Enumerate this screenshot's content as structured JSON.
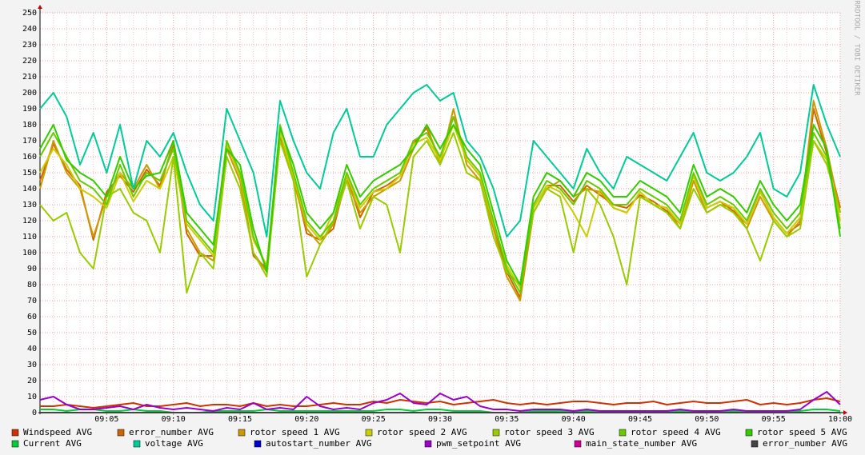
{
  "chart_data": {
    "type": "line",
    "watermark": "RRDTOOL / TOBI OETIKER",
    "categories": [
      null,
      null,
      null,
      null,
      null,
      "09:05",
      null,
      null,
      null,
      null,
      "09:10",
      null,
      null,
      null,
      null,
      "09:15",
      null,
      null,
      null,
      null,
      "09:20",
      null,
      null,
      null,
      null,
      "09:25",
      null,
      null,
      null,
      null,
      "09:30",
      null,
      null,
      null,
      null,
      "09:35",
      null,
      null,
      null,
      null,
      "09:40",
      null,
      null,
      null,
      null,
      "09:45",
      null,
      null,
      null,
      null,
      "09:50",
      null,
      null,
      null,
      null,
      "09:55",
      null,
      null,
      null,
      null,
      "10:00"
    ],
    "ylim": [
      0,
      250
    ],
    "yticks": [
      0,
      10,
      20,
      30,
      40,
      50,
      60,
      70,
      80,
      90,
      100,
      110,
      120,
      130,
      140,
      150,
      160,
      170,
      180,
      190,
      200,
      210,
      220,
      230,
      240,
      250
    ],
    "grid": true,
    "series": [
      {
        "name": "Windspeed AVG",
        "color": "#cc3300",
        "values": [
          4,
          4,
          5,
          4,
          3,
          4,
          5,
          6,
          4,
          4,
          5,
          6,
          4,
          5,
          5,
          4,
          6,
          4,
          5,
          4,
          4,
          5,
          6,
          5,
          5,
          7,
          6,
          8,
          7,
          6,
          7,
          5,
          6,
          7,
          8,
          6,
          5,
          6,
          5,
          6,
          7,
          7,
          6,
          5,
          6,
          6,
          7,
          5,
          6,
          7,
          6,
          6,
          7,
          8,
          5,
          6,
          5,
          6,
          8,
          9,
          7
        ]
      },
      {
        "name": "error_number AVG",
        "color": "#cc6600",
        "values": [
          145,
          168,
          152,
          142,
          108,
          138,
          148,
          138,
          152,
          142,
          168,
          112,
          98,
          98,
          168,
          148,
          98,
          90,
          172,
          148,
          112,
          108,
          115,
          148,
          122,
          138,
          142,
          148,
          168,
          178,
          158,
          185,
          158,
          148,
          118,
          88,
          72,
          128,
          142,
          142,
          132,
          142,
          136,
          130,
          128,
          136,
          132,
          126,
          118,
          148,
          128,
          132,
          126,
          118,
          138,
          122,
          112,
          118,
          190,
          162,
          128
        ]
      },
      {
        "name": "rotor speed 1 AVG",
        "color": "#cc9900",
        "values": [
          140,
          170,
          150,
          140,
          110,
          135,
          150,
          140,
          155,
          140,
          170,
          115,
          100,
          95,
          165,
          145,
          100,
          88,
          175,
          145,
          115,
          105,
          118,
          145,
          125,
          135,
          140,
          145,
          165,
          180,
          155,
          190,
          155,
          145,
          115,
          85,
          70,
          125,
          140,
          145,
          135,
          140,
          138,
          128,
          125,
          138,
          130,
          128,
          115,
          145,
          125,
          130,
          128,
          115,
          135,
          120,
          110,
          120,
          195,
          165,
          125
        ]
      },
      {
        "name": "rotor speed 2 AVG",
        "color": "#cccc00",
        "values": [
          150,
          165,
          155,
          140,
          135,
          128,
          150,
          132,
          145,
          140,
          160,
          118,
          108,
          98,
          168,
          148,
          108,
          92,
          175,
          148,
          118,
          108,
          125,
          148,
          128,
          138,
          140,
          148,
          168,
          172,
          158,
          180,
          158,
          148,
          118,
          92,
          78,
          128,
          142,
          138,
          125,
          110,
          140,
          128,
          125,
          138,
          130,
          128,
          118,
          148,
          128,
          132,
          128,
          118,
          138,
          122,
          112,
          122,
          170,
          158,
          120
        ]
      },
      {
        "name": "rotor speed 3 AVG",
        "color": "#99cc00",
        "values": [
          130,
          120,
          125,
          100,
          90,
          135,
          140,
          125,
          120,
          100,
          160,
          75,
          100,
          90,
          160,
          140,
          100,
          85,
          170,
          145,
          85,
          105,
          120,
          145,
          115,
          135,
          130,
          100,
          160,
          170,
          155,
          175,
          150,
          145,
          110,
          88,
          80,
          125,
          140,
          135,
          100,
          140,
          130,
          110,
          80,
          135,
          130,
          125,
          115,
          140,
          125,
          130,
          125,
          115,
          95,
          120,
          110,
          115,
          170,
          155,
          125
        ]
      },
      {
        "name": "rotor speed 4 AVG",
        "color": "#66cc00",
        "values": [
          160,
          175,
          160,
          145,
          140,
          130,
          155,
          135,
          150,
          145,
          165,
          120,
          110,
          100,
          170,
          150,
          110,
          90,
          180,
          150,
          120,
          110,
          120,
          150,
          130,
          140,
          145,
          150,
          170,
          175,
          160,
          185,
          160,
          150,
          120,
          90,
          75,
          130,
          145,
          140,
          130,
          145,
          140,
          130,
          130,
          140,
          135,
          130,
          120,
          150,
          130,
          135,
          130,
          120,
          140,
          125,
          115,
          125,
          175,
          160,
          115
        ]
      },
      {
        "name": "rotor speed 5 AVG",
        "color": "#33cc00",
        "values": [
          165,
          180,
          158,
          150,
          145,
          135,
          160,
          140,
          148,
          150,
          170,
          125,
          115,
          105,
          165,
          155,
          115,
          88,
          178,
          155,
          125,
          115,
          125,
          155,
          135,
          145,
          150,
          155,
          165,
          180,
          165,
          180,
          165,
          155,
          125,
          95,
          80,
          135,
          150,
          145,
          135,
          150,
          145,
          135,
          135,
          145,
          140,
          135,
          125,
          155,
          135,
          140,
          135,
          125,
          145,
          130,
          120,
          130,
          180,
          165,
          110
        ]
      },
      {
        "name": "Current AVG",
        "color": "#00cc33",
        "values": [
          2,
          2,
          1,
          2,
          2,
          1,
          1,
          2,
          1,
          1,
          0,
          0,
          0,
          1,
          1,
          1,
          1,
          2,
          1,
          1,
          1,
          1,
          1,
          1,
          1,
          1,
          2,
          2,
          1,
          2,
          2,
          1,
          1,
          1,
          0,
          0,
          0,
          1,
          1,
          1,
          1,
          1,
          1,
          1,
          1,
          1,
          1,
          1,
          1,
          1,
          1,
          1,
          1,
          1,
          1,
          1,
          1,
          1,
          2,
          2,
          1
        ]
      },
      {
        "name": "voltage AVG",
        "color": "#00cc99",
        "values": [
          190,
          200,
          185,
          155,
          175,
          150,
          180,
          140,
          170,
          160,
          175,
          150,
          130,
          120,
          190,
          170,
          150,
          110,
          195,
          170,
          150,
          140,
          175,
          190,
          160,
          160,
          180,
          190,
          200,
          205,
          195,
          200,
          170,
          160,
          140,
          110,
          120,
          170,
          160,
          150,
          140,
          165,
          150,
          140,
          160,
          155,
          150,
          145,
          160,
          175,
          150,
          145,
          150,
          160,
          175,
          140,
          135,
          150,
          205,
          180,
          160
        ]
      },
      {
        "name": "autostart_number AVG",
        "color": "#0000cc",
        "values": [
          0,
          0,
          0,
          0,
          0,
          0,
          0,
          0,
          0,
          0,
          0,
          0,
          0,
          0,
          0,
          0,
          0,
          0,
          0,
          0,
          0,
          0,
          0,
          0,
          0,
          0,
          0,
          0,
          0,
          0,
          0,
          0,
          0,
          0,
          0,
          0,
          0,
          0,
          0,
          0,
          0,
          0,
          0,
          0,
          0,
          0,
          0,
          0,
          0,
          0,
          0,
          0,
          0,
          0,
          0,
          0,
          0,
          0,
          0,
          0,
          0
        ]
      },
      {
        "name": "pwm_setpoint AVG",
        "color": "#9900cc",
        "values": [
          8,
          10,
          5,
          2,
          2,
          3,
          4,
          2,
          5,
          3,
          2,
          3,
          2,
          1,
          3,
          2,
          6,
          2,
          3,
          2,
          10,
          4,
          2,
          3,
          2,
          6,
          8,
          12,
          6,
          5,
          12,
          8,
          10,
          4,
          2,
          2,
          1,
          2,
          2,
          2,
          1,
          2,
          1,
          1,
          1,
          1,
          1,
          1,
          2,
          1,
          1,
          1,
          2,
          1,
          1,
          1,
          1,
          2,
          8,
          13,
          5
        ]
      },
      {
        "name": "main_state_number AVG",
        "color": "#cc0099",
        "values": [
          0,
          0,
          0,
          0,
          0,
          0,
          0,
          0,
          0,
          0,
          0,
          0,
          0,
          0,
          0,
          0,
          0,
          0,
          0,
          0,
          0,
          0,
          0,
          0,
          0,
          0,
          0,
          0,
          0,
          0,
          0,
          0,
          0,
          0,
          0,
          0,
          0,
          0,
          0,
          0,
          0,
          0,
          0,
          0,
          0,
          0,
          0,
          0,
          0,
          0,
          0,
          0,
          0,
          0,
          0,
          0,
          0,
          0,
          0,
          0,
          0
        ]
      },
      {
        "name": "error_number AVG",
        "color": "#444444",
        "values": [
          0,
          0,
          0,
          0,
          0,
          0,
          0,
          0,
          0,
          0,
          0,
          0,
          0,
          0,
          0,
          0,
          0,
          0,
          0,
          0,
          0,
          0,
          0,
          0,
          0,
          0,
          0,
          0,
          0,
          0,
          0,
          0,
          0,
          0,
          0,
          0,
          0,
          0,
          0,
          0,
          0,
          0,
          0,
          0,
          0,
          0,
          0,
          0,
          0,
          0,
          0,
          0,
          0,
          0,
          0,
          0,
          0,
          0,
          0,
          0,
          0
        ]
      }
    ]
  }
}
